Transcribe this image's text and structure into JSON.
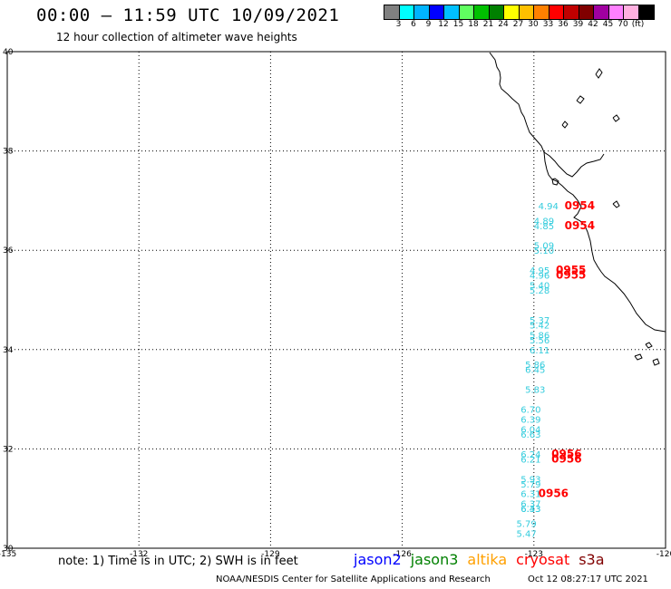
{
  "header": {
    "title": "00:00 – 11:59 UTC 10/09/2021",
    "subtitle": "12 hour collection of altimeter wave heights"
  },
  "colorbar": {
    "colors": [
      "#808080",
      "#00ffff",
      "#00b4ff",
      "#0000ff",
      "#00c0ff",
      "#60ff60",
      "#00c000",
      "#008000",
      "#ffff00",
      "#ffc000",
      "#ff8000",
      "#ff0000",
      "#c00000",
      "#800000",
      "#a000a0",
      "#ff80ff",
      "#ffb0e0",
      "#000000"
    ],
    "labels": [
      "3",
      "6",
      "9",
      "12",
      "15",
      "18",
      "21",
      "24",
      "27",
      "30",
      "33",
      "36",
      "39",
      "42",
      "45",
      "70",
      "(ft)"
    ]
  },
  "map": {
    "lon_range": [
      -135,
      -120
    ],
    "lat_range": [
      30,
      40
    ],
    "lon_ticks": [
      "-135",
      "-132",
      "-129",
      "-126",
      "-123",
      "-120"
    ],
    "lat_ticks": [
      "30",
      "32",
      "34",
      "36",
      "38",
      "40"
    ],
    "jason3_obs": [
      {
        "lat": 36.9,
        "lon": -122.9,
        "text": "4.94"
      },
      {
        "lat": 36.6,
        "lon": -123.0,
        "text": "4.89"
      },
      {
        "lat": 36.5,
        "lon": -123.0,
        "text": "4.85"
      },
      {
        "lat": 36.1,
        "lon": -123.0,
        "text": "5.09"
      },
      {
        "lat": 36.0,
        "lon": -123.0,
        "text": "5.10"
      },
      {
        "lat": 35.6,
        "lon": -123.1,
        "text": "4.95"
      },
      {
        "lat": 35.5,
        "lon": -123.1,
        "text": "4.96"
      },
      {
        "lat": 35.3,
        "lon": -123.1,
        "text": "5.40"
      },
      {
        "lat": 35.2,
        "lon": -123.1,
        "text": "5.28"
      },
      {
        "lat": 34.6,
        "lon": -123.1,
        "text": "5.37"
      },
      {
        "lat": 34.5,
        "lon": -123.1,
        "text": "5.42"
      },
      {
        "lat": 34.3,
        "lon": -123.1,
        "text": "5.86"
      },
      {
        "lat": 34.2,
        "lon": -123.1,
        "text": "5.56"
      },
      {
        "lat": 34.0,
        "lon": -123.1,
        "text": "6.11"
      },
      {
        "lat": 33.7,
        "lon": -123.2,
        "text": "5.86"
      },
      {
        "lat": 33.6,
        "lon": -123.2,
        "text": "6.45"
      },
      {
        "lat": 33.2,
        "lon": -123.2,
        "text": "5.83"
      },
      {
        "lat": 32.8,
        "lon": -123.3,
        "text": "6.70"
      },
      {
        "lat": 32.6,
        "lon": -123.3,
        "text": "6.39"
      },
      {
        "lat": 32.4,
        "lon": -123.3,
        "text": "6.04"
      },
      {
        "lat": 32.3,
        "lon": -123.3,
        "text": "6.63"
      },
      {
        "lat": 31.9,
        "lon": -123.3,
        "text": "6.24"
      },
      {
        "lat": 31.8,
        "lon": -123.3,
        "text": "6.21"
      },
      {
        "lat": 31.4,
        "lon": -123.3,
        "text": "5.93"
      },
      {
        "lat": 31.3,
        "lon": -123.3,
        "text": "5.79"
      },
      {
        "lat": 31.1,
        "lon": -123.3,
        "text": "6.31"
      },
      {
        "lat": 30.9,
        "lon": -123.3,
        "text": "6.37"
      },
      {
        "lat": 30.8,
        "lon": -123.3,
        "text": "6.43"
      },
      {
        "lat": 30.8,
        "lon": -123.3,
        "text": "6.33"
      },
      {
        "lat": 30.5,
        "lon": -123.4,
        "text": "5.79"
      },
      {
        "lat": 30.3,
        "lon": -123.4,
        "text": "5.47"
      }
    ],
    "cryosat_obs": [
      {
        "lat": 36.9,
        "lon": -122.3,
        "text": "0954"
      },
      {
        "lat": 36.5,
        "lon": -122.3,
        "text": "0954"
      },
      {
        "lat": 35.6,
        "lon": -122.5,
        "text": "0955"
      },
      {
        "lat": 35.5,
        "lon": -122.5,
        "text": "0955"
      },
      {
        "lat": 31.9,
        "lon": -122.6,
        "text": "0956"
      },
      {
        "lat": 31.8,
        "lon": -122.6,
        "text": "0956"
      },
      {
        "lat": 31.1,
        "lon": -122.9,
        "text": "0956"
      }
    ]
  },
  "footer": {
    "note": "note: 1) Time is in UTC; 2) SWH is in feet",
    "legend": [
      {
        "name": "jason2",
        "color": "#0000ff"
      },
      {
        "name": "jason3",
        "color": "#008000"
      },
      {
        "name": "altika",
        "color": "#ffa000"
      },
      {
        "name": "cryosat",
        "color": "#ff0000"
      },
      {
        "name": "s3a",
        "color": "#800000"
      }
    ],
    "credit": "NOAA/NESDIS Center for Satellite Applications and Research",
    "timestamp": "Oct 12 08:27:17 UTC 2021"
  }
}
